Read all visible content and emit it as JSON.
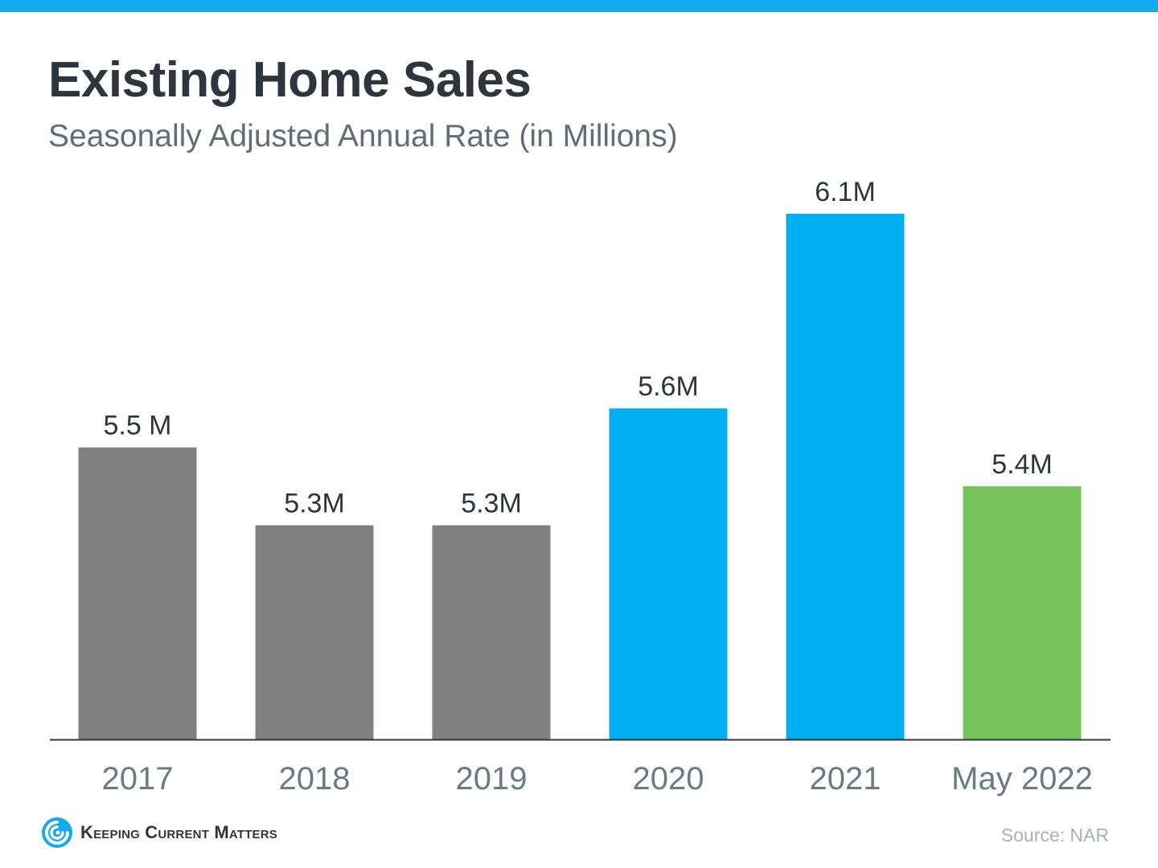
{
  "header": {
    "title": "Existing Home Sales",
    "subtitle": "Seasonally Adjusted Annual Rate (in Millions)"
  },
  "footer": {
    "brand": "Keeping Current Matters",
    "brand_icon": "swirl-logo-icon",
    "source": "Source: NAR"
  },
  "colors": {
    "accent_bar": "#14A9EC",
    "gray": "#808080",
    "blue": "#00AEEF",
    "green": "#75C35A",
    "label_text": "#2E353D",
    "axis_text": "#6B7A87"
  },
  "chart_data": {
    "type": "bar",
    "title": "Existing Home Sales",
    "subtitle": "Seasonally Adjusted Annual Rate (in Millions)",
    "xlabel": "",
    "ylabel": "",
    "categories": [
      "2017",
      "2018",
      "2019",
      "2020",
      "2021",
      "May 2022"
    ],
    "values": [
      5.5,
      5.3,
      5.3,
      5.6,
      6.1,
      5.4
    ],
    "data_labels": [
      "5.5 M",
      "5.3M",
      "5.3M",
      "5.6M",
      "6.1M",
      "5.4M"
    ],
    "bar_colors": [
      "#808080",
      "#808080",
      "#808080",
      "#00AEEF",
      "#00AEEF",
      "#75C35A"
    ],
    "ylim": [
      4.75,
      6.1
    ],
    "grid": false,
    "legend": "none",
    "y_axis_visible": false
  }
}
